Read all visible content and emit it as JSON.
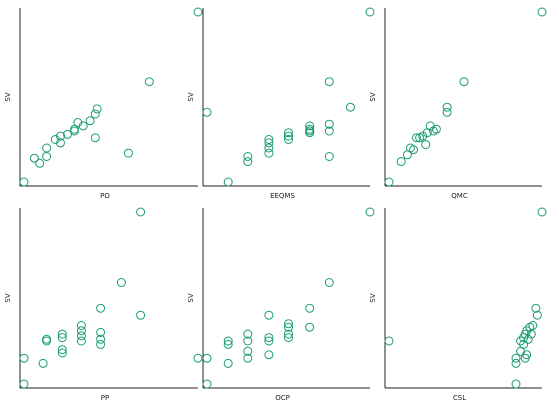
{
  "marker_color": "#1a9e6e",
  "chart_data": [
    {
      "type": "scatter",
      "xlabel": "PO",
      "ylabel": "SV",
      "points": [
        [
          0.0,
          0.0
        ],
        [
          0.06,
          0.14
        ],
        [
          0.09,
          0.11
        ],
        [
          0.13,
          0.2
        ],
        [
          0.13,
          0.15
        ],
        [
          0.18,
          0.25
        ],
        [
          0.21,
          0.27
        ],
        [
          0.21,
          0.23
        ],
        [
          0.25,
          0.28
        ],
        [
          0.29,
          0.31
        ],
        [
          0.29,
          0.3
        ],
        [
          0.31,
          0.35
        ],
        [
          0.34,
          0.33
        ],
        [
          0.38,
          0.36
        ],
        [
          0.41,
          0.4
        ],
        [
          0.41,
          0.26
        ],
        [
          0.42,
          0.43
        ],
        [
          0.6,
          0.17
        ],
        [
          0.72,
          0.59
        ],
        [
          1.0,
          1.0
        ]
      ]
    },
    {
      "type": "scatter",
      "xlabel": "EEQMS",
      "ylabel": "SV",
      "points": [
        [
          0.0,
          0.41
        ],
        [
          0.13,
          0.0
        ],
        [
          0.25,
          0.15
        ],
        [
          0.25,
          0.12
        ],
        [
          0.38,
          0.17
        ],
        [
          0.38,
          0.2
        ],
        [
          0.38,
          0.23
        ],
        [
          0.38,
          0.25
        ],
        [
          0.5,
          0.25
        ],
        [
          0.5,
          0.27
        ],
        [
          0.5,
          0.29
        ],
        [
          0.63,
          0.29
        ],
        [
          0.63,
          0.3
        ],
        [
          0.63,
          0.31
        ],
        [
          0.63,
          0.33
        ],
        [
          0.75,
          0.15
        ],
        [
          0.75,
          0.3
        ],
        [
          0.75,
          0.34
        ],
        [
          0.75,
          0.59
        ],
        [
          0.88,
          0.44
        ],
        [
          1.0,
          1.0
        ]
      ]
    },
    {
      "type": "scatter",
      "xlabel": "QMC",
      "ylabel": "SV",
      "points": [
        [
          0.0,
          0.0
        ],
        [
          0.08,
          0.12
        ],
        [
          0.12,
          0.16
        ],
        [
          0.14,
          0.2
        ],
        [
          0.16,
          0.19
        ],
        [
          0.18,
          0.26
        ],
        [
          0.2,
          0.26
        ],
        [
          0.22,
          0.27
        ],
        [
          0.24,
          0.22
        ],
        [
          0.25,
          0.29
        ],
        [
          0.27,
          0.33
        ],
        [
          0.29,
          0.3
        ],
        [
          0.31,
          0.31
        ],
        [
          0.38,
          0.41
        ],
        [
          0.38,
          0.44
        ],
        [
          0.49,
          0.59
        ],
        [
          1.0,
          1.0
        ]
      ]
    },
    {
      "type": "scatter",
      "xlabel": "PP",
      "ylabel": "SV",
      "points": [
        [
          0.0,
          0.0
        ],
        [
          0.0,
          0.15
        ],
        [
          0.11,
          0.12
        ],
        [
          0.13,
          0.25
        ],
        [
          0.13,
          0.26
        ],
        [
          0.22,
          0.18
        ],
        [
          0.22,
          0.2
        ],
        [
          0.22,
          0.27
        ],
        [
          0.22,
          0.29
        ],
        [
          0.33,
          0.25
        ],
        [
          0.33,
          0.28
        ],
        [
          0.33,
          0.31
        ],
        [
          0.33,
          0.34
        ],
        [
          0.44,
          0.23
        ],
        [
          0.44,
          0.26
        ],
        [
          0.44,
          0.3
        ],
        [
          0.44,
          0.44
        ],
        [
          0.56,
          0.59
        ],
        [
          0.67,
          0.4
        ],
        [
          0.67,
          1.0
        ],
        [
          1.0,
          0.15
        ]
      ]
    },
    {
      "type": "scatter",
      "xlabel": "OCP",
      "ylabel": "SV",
      "points": [
        [
          0.0,
          0.0
        ],
        [
          0.0,
          0.15
        ],
        [
          0.13,
          0.12
        ],
        [
          0.13,
          0.23
        ],
        [
          0.13,
          0.25
        ],
        [
          0.25,
          0.15
        ],
        [
          0.25,
          0.19
        ],
        [
          0.25,
          0.25
        ],
        [
          0.25,
          0.29
        ],
        [
          0.38,
          0.17
        ],
        [
          0.38,
          0.25
        ],
        [
          0.38,
          0.27
        ],
        [
          0.38,
          0.4
        ],
        [
          0.5,
          0.27
        ],
        [
          0.5,
          0.29
        ],
        [
          0.5,
          0.33
        ],
        [
          0.5,
          0.35
        ],
        [
          0.63,
          0.33
        ],
        [
          0.63,
          0.44
        ],
        [
          0.75,
          0.59
        ],
        [
          1.0,
          1.0
        ]
      ]
    },
    {
      "type": "scatter",
      "xlabel": "CSL",
      "ylabel": "SV",
      "points": [
        [
          0.0,
          0.25
        ],
        [
          0.83,
          0.0
        ],
        [
          0.83,
          0.12
        ],
        [
          0.83,
          0.15
        ],
        [
          0.86,
          0.19
        ],
        [
          0.86,
          0.25
        ],
        [
          0.88,
          0.23
        ],
        [
          0.88,
          0.27
        ],
        [
          0.89,
          0.15
        ],
        [
          0.89,
          0.29
        ],
        [
          0.9,
          0.17
        ],
        [
          0.9,
          0.31
        ],
        [
          0.91,
          0.26
        ],
        [
          0.92,
          0.33
        ],
        [
          0.93,
          0.29
        ],
        [
          0.94,
          0.34
        ],
        [
          0.96,
          0.44
        ],
        [
          0.97,
          0.4
        ],
        [
          1.0,
          1.0
        ]
      ]
    }
  ]
}
